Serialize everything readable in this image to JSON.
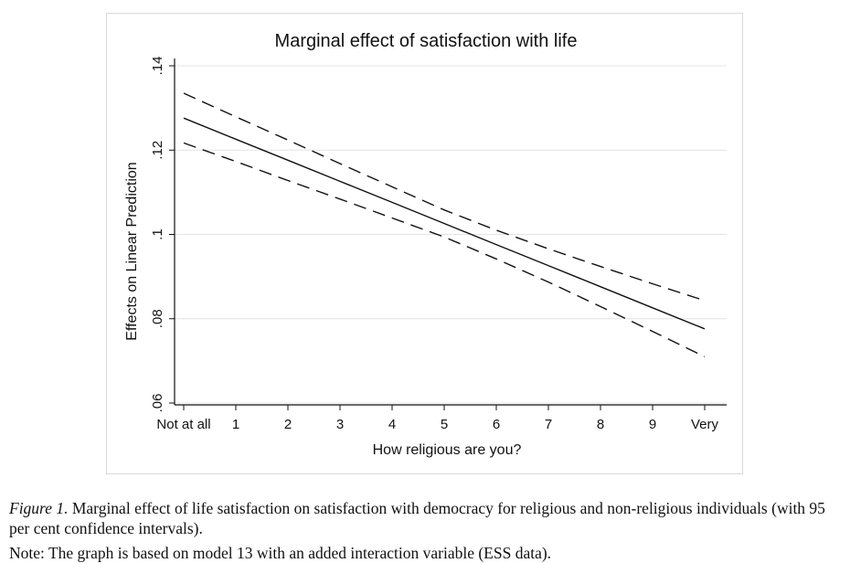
{
  "chart_data": {
    "type": "line",
    "title": "Marginal effect of satisfaction with life",
    "xlabel": "How religious are you?",
    "ylabel": "Effects on Linear Prediction",
    "categories": [
      "Not at all",
      "1",
      "2",
      "3",
      "4",
      "5",
      "6",
      "7",
      "8",
      "9",
      "Very"
    ],
    "x": [
      0,
      1,
      2,
      3,
      4,
      5,
      6,
      7,
      8,
      9,
      10
    ],
    "xlim": [
      0,
      10
    ],
    "ylim": [
      0.06,
      0.14
    ],
    "yticks": [
      0.06,
      0.08,
      0.1,
      0.12,
      0.14
    ],
    "ytick_labels": [
      ".06",
      ".08",
      ".1",
      ".12",
      ".14"
    ],
    "grid": true,
    "legend": "none",
    "series": [
      {
        "values": [
          0.1276,
          0.1226,
          0.1176,
          0.1126,
          0.1076,
          0.1026,
          0.0976,
          0.0926,
          0.0876,
          0.0826,
          0.0776
        ],
        "style": "solid",
        "color": "#111111"
      },
      {
        "values": [
          0.1335,
          0.1279,
          0.1224,
          0.1168,
          0.1113,
          0.1058,
          0.101,
          0.0966,
          0.0924,
          0.0883,
          0.0843
        ],
        "style": "dashed",
        "color": "#111111"
      },
      {
        "values": [
          0.1217,
          0.1173,
          0.1128,
          0.1084,
          0.1039,
          0.0994,
          0.0942,
          0.0887,
          0.0829,
          0.077,
          0.071
        ],
        "style": "dashed",
        "color": "#111111"
      }
    ]
  },
  "caption": {
    "figure_label": "Figure 1.",
    "text": " Marginal effect of life satisfaction on satisfaction with democracy for religious and non-religious individuals (with 95 per cent confidence intervals).",
    "note": "Note: The graph is based on model 13 with an added interaction variable (ESS data)."
  }
}
